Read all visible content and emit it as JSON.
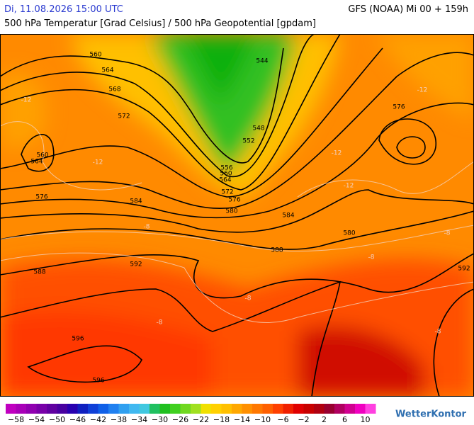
{
  "header": {
    "date": "Di, 11.08.2026 15:00 UTC",
    "model": "GFS (NOAA) Mi 00 + 159h",
    "subtitle": "500 hPa Temperatur [Grad Celsius] / 500 hPa Geopotential [gpdam]"
  },
  "map": {
    "geopotential_labels": [
      "560",
      "564",
      "568",
      "572",
      "544",
      "548",
      "552",
      "556",
      "560",
      "564",
      "572",
      "576",
      "580",
      "584",
      "584",
      "580",
      "588",
      "592",
      "588",
      "576",
      "564",
      "560",
      "576",
      "596",
      "596",
      "592"
    ],
    "temperature_labels": [
      "-12",
      "-12",
      "-12",
      "-12",
      "-12",
      "-8",
      "-8",
      "-8",
      "-8",
      "-8",
      "-8"
    ]
  },
  "legend": {
    "colors": [
      "#c000c0",
      "#a800b8",
      "#9000b0",
      "#7800a8",
      "#6000a0",
      "#4800a0",
      "#2800b0",
      "#1020c0",
      "#1040d8",
      "#1060e8",
      "#2080f0",
      "#30a0f0",
      "#40b8f0",
      "#40c8e0",
      "#20c060",
      "#20c020",
      "#40d020",
      "#70d820",
      "#a0e020",
      "#f0e000",
      "#ffd000",
      "#ffc000",
      "#ffa800",
      "#ff9000",
      "#ff7800",
      "#ff6000",
      "#ff4000",
      "#f02000",
      "#e00000",
      "#c80000",
      "#b00010",
      "#980030",
      "#b00060",
      "#d00090",
      "#f000c0",
      "#ff40e0"
    ],
    "ticks": [
      "−58",
      "−54",
      "−50",
      "−46",
      "−42",
      "−38",
      "−34",
      "−30",
      "−26",
      "−22",
      "−18",
      "−14",
      "−10",
      "−6",
      "−2",
      "2",
      "6",
      "10"
    ],
    "brand": "WetterKontor"
  }
}
